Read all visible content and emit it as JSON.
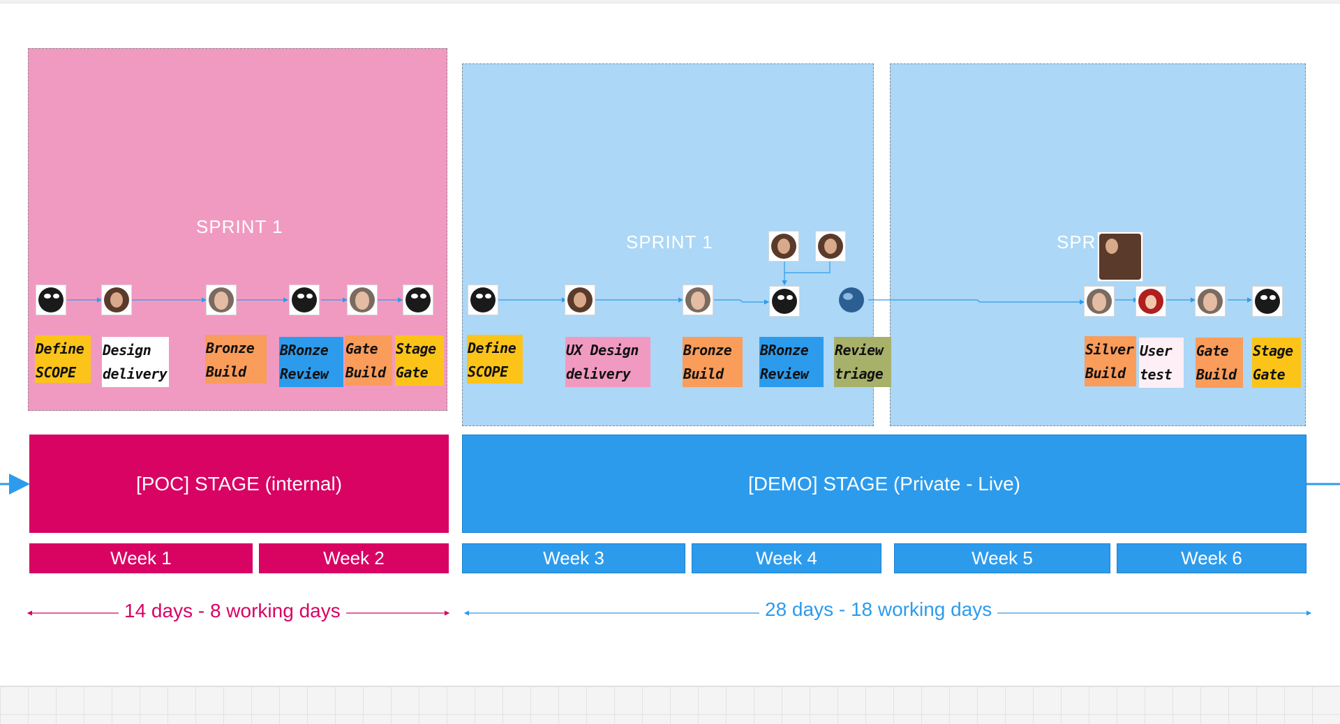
{
  "colors": {
    "poc": "#d80363",
    "demo": "#2d9bec",
    "sprint_pink": "#f19ac1",
    "sprint_blue": "#acd7f6",
    "yellow": "#fcc419",
    "white": "#ffffff",
    "orange": "#fa9c5a",
    "blue": "#2d9bec",
    "pink": "#f19ac1",
    "olive": "#a8b16a",
    "light": "#fdeff5"
  },
  "sprints": [
    {
      "label": "SPRINT 1"
    },
    {
      "label": "SPRINT 1"
    },
    {
      "label": "SPRI"
    }
  ],
  "stages": {
    "poc": "[POC] STAGE (internal)",
    "demo": "[DEMO] STAGE (Private - Live)"
  },
  "weeks": [
    "Week 1",
    "Week 2",
    "Week 3",
    "Week 4",
    "Week 5",
    "Week 6"
  ],
  "durations": {
    "poc": "14 days - 8 working days",
    "demo": "28 days - 18 working days"
  },
  "stickies": [
    {
      "text": "Define\nSCOPE",
      "color": "yellow"
    },
    {
      "text": "Design\ndelivery",
      "color": "white"
    },
    {
      "text": "Bronze\nBuild",
      "color": "orange"
    },
    {
      "text": "BRonze\nReview",
      "color": "blue"
    },
    {
      "text": "Gate\nBuild",
      "color": "orange"
    },
    {
      "text": "Stage\nGate",
      "color": "yellow"
    },
    {
      "text": "Define\nSCOPE",
      "color": "yellow"
    },
    {
      "text": "UX Design\ndelivery",
      "color": "pink"
    },
    {
      "text": "Bronze\nBuild",
      "color": "orange"
    },
    {
      "text": "BRonze\nReview",
      "color": "blue"
    },
    {
      "text": "Review\ntriage",
      "color": "olive"
    },
    {
      "text": "Silver\nBuild",
      "color": "orange"
    },
    {
      "text": "User\ntest",
      "color": "light"
    },
    {
      "text": "Gate\nBuild",
      "color": "orange"
    },
    {
      "text": "Stage\nGate",
      "color": "yellow"
    }
  ],
  "avatars": [
    {
      "icon": "robot-avatar-icon",
      "kind": "robot"
    },
    {
      "icon": "woman-avatar-icon",
      "kind": "woman"
    },
    {
      "icon": "man-avatar-icon",
      "kind": "man"
    },
    {
      "icon": "robot-avatar-icon",
      "kind": "robot"
    },
    {
      "icon": "man-avatar-icon",
      "kind": "man"
    },
    {
      "icon": "robot-avatar-icon",
      "kind": "robot"
    },
    {
      "icon": "robot-avatar-icon",
      "kind": "robot"
    },
    {
      "icon": "woman-avatar-icon",
      "kind": "woman"
    },
    {
      "icon": "man-avatar-icon",
      "kind": "man"
    },
    {
      "icon": "robot-avatar-icon",
      "kind": "robot"
    },
    {
      "icon": "globe-avatar-icon",
      "kind": "globe"
    },
    {
      "icon": "woman-avatar-icon",
      "kind": "woman"
    },
    {
      "icon": "woman-avatar-icon",
      "kind": "woman"
    },
    {
      "icon": "woman-avatar-icon",
      "kind": "woman"
    },
    {
      "icon": "man-avatar-icon",
      "kind": "man"
    },
    {
      "icon": "redhair-avatar-icon",
      "kind": "redhair"
    },
    {
      "icon": "man-avatar-icon",
      "kind": "man"
    },
    {
      "icon": "robot-avatar-icon",
      "kind": "robot"
    }
  ]
}
